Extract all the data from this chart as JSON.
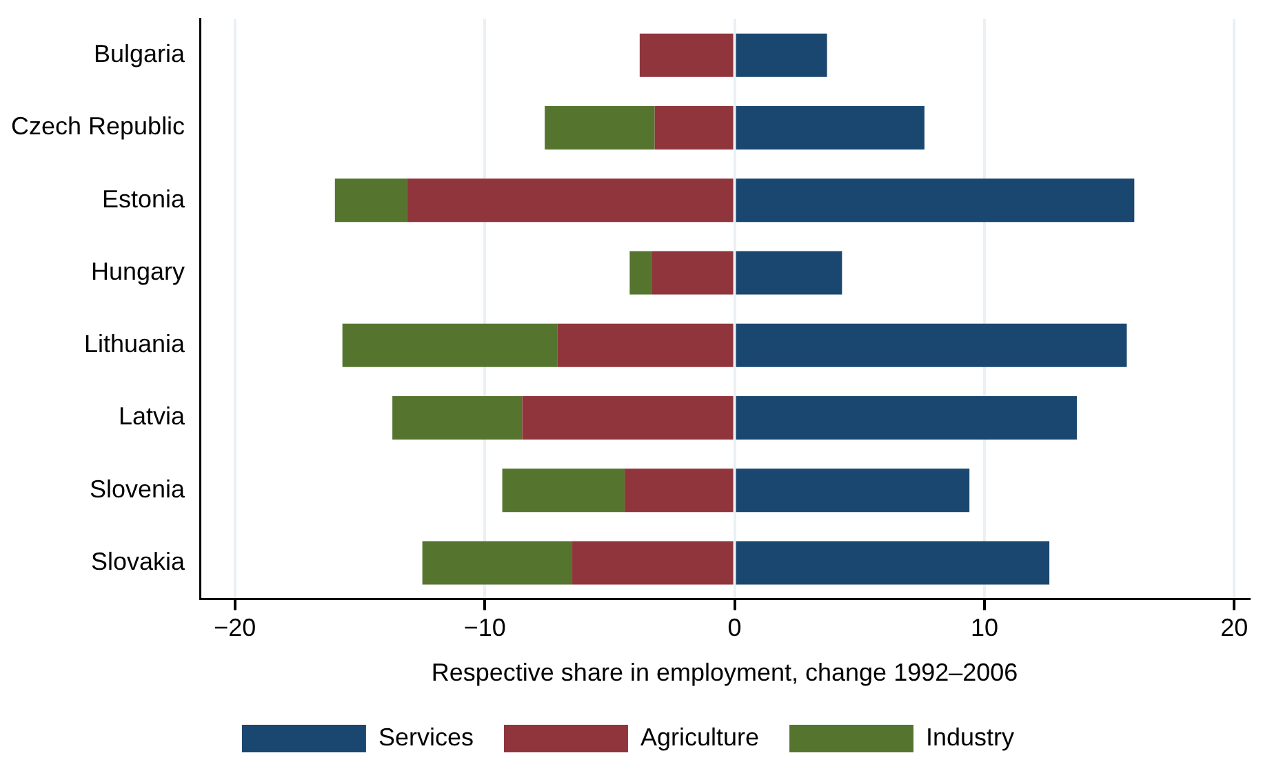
{
  "chart_data": {
    "type": "bar",
    "orientation": "horizontal",
    "stacked": true,
    "xlabel": "Respective share in employment, change 1992–2006",
    "categories": [
      "Bulgaria",
      "Czech Republic",
      "Estonia",
      "Hungary",
      "Lithuania",
      "Latvia",
      "Slovenia",
      "Slovakia"
    ],
    "series": [
      {
        "name": "Services",
        "color": "#1a476f",
        "values": [
          3.7,
          7.6,
          16.0,
          4.3,
          15.7,
          13.7,
          9.4,
          12.6
        ]
      },
      {
        "name": "Agriculture",
        "color": "#90353b",
        "values": [
          -3.8,
          -3.2,
          -13.1,
          -3.3,
          -7.1,
          -8.5,
          -4.4,
          -6.5
        ]
      },
      {
        "name": "Industry",
        "color": "#55752f",
        "values": [
          0,
          -4.4,
          -2.9,
          -0.9,
          -8.6,
          -5.2,
          -4.9,
          -6.0
        ]
      }
    ],
    "xlim": [
      -21.4,
      20.6
    ],
    "xticks": [
      {
        "value": -20,
        "label": "−20"
      },
      {
        "value": -10,
        "label": "−10"
      },
      0,
      10,
      20
    ],
    "grid": "x",
    "legend": "bottom"
  }
}
